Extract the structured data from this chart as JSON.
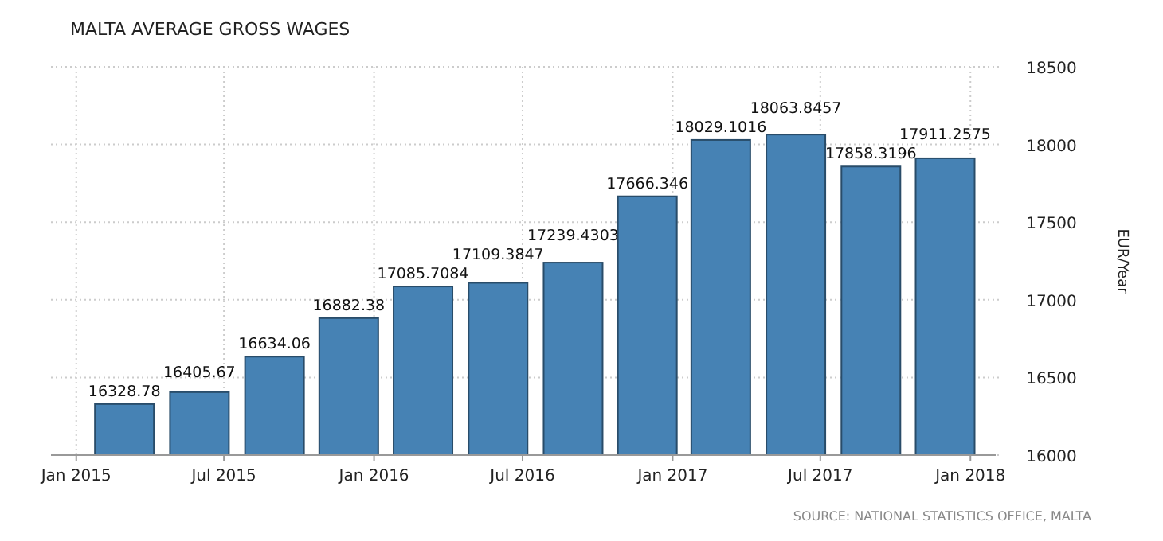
{
  "chart_data": {
    "type": "bar",
    "title": "MALTA AVERAGE GROSS WAGES",
    "ylabel": "EUR/Year",
    "x": [
      "2015-03",
      "2015-06",
      "2015-09",
      "2015-12",
      "2016-03",
      "2016-06",
      "2016-09",
      "2016-12",
      "2017-03",
      "2017-06",
      "2017-09",
      "2017-12"
    ],
    "values": [
      16328.78,
      16405.67,
      16634.06,
      16882.38,
      17085.7084,
      17109.3847,
      17239.4303,
      17666.346,
      18029.1016,
      18063.8457,
      17858.3196,
      17911.2575
    ],
    "color": "#4682b4",
    "data_labels": true,
    "xlim": [
      "2014-12",
      "2018-02"
    ],
    "xticks": [
      {
        "value": "2015-01",
        "label": "Jan 2015"
      },
      {
        "value": "2015-07",
        "label": "Jul 2015"
      },
      {
        "value": "2016-01",
        "label": "Jan 2016"
      },
      {
        "value": "2016-07",
        "label": "Jul 2016"
      },
      {
        "value": "2017-01",
        "label": "Jan 2017"
      },
      {
        "value": "2017-07",
        "label": "Jul 2017"
      },
      {
        "value": "2018-01",
        "label": "Jan 2018"
      }
    ],
    "ylim": [
      16000,
      18500
    ],
    "yticks": [
      16000,
      16500,
      17000,
      17500,
      18000,
      18500
    ],
    "grid": true,
    "annotations": [
      "SOURCE: NATIONAL STATISTICS OFFICE, MALTA"
    ]
  }
}
